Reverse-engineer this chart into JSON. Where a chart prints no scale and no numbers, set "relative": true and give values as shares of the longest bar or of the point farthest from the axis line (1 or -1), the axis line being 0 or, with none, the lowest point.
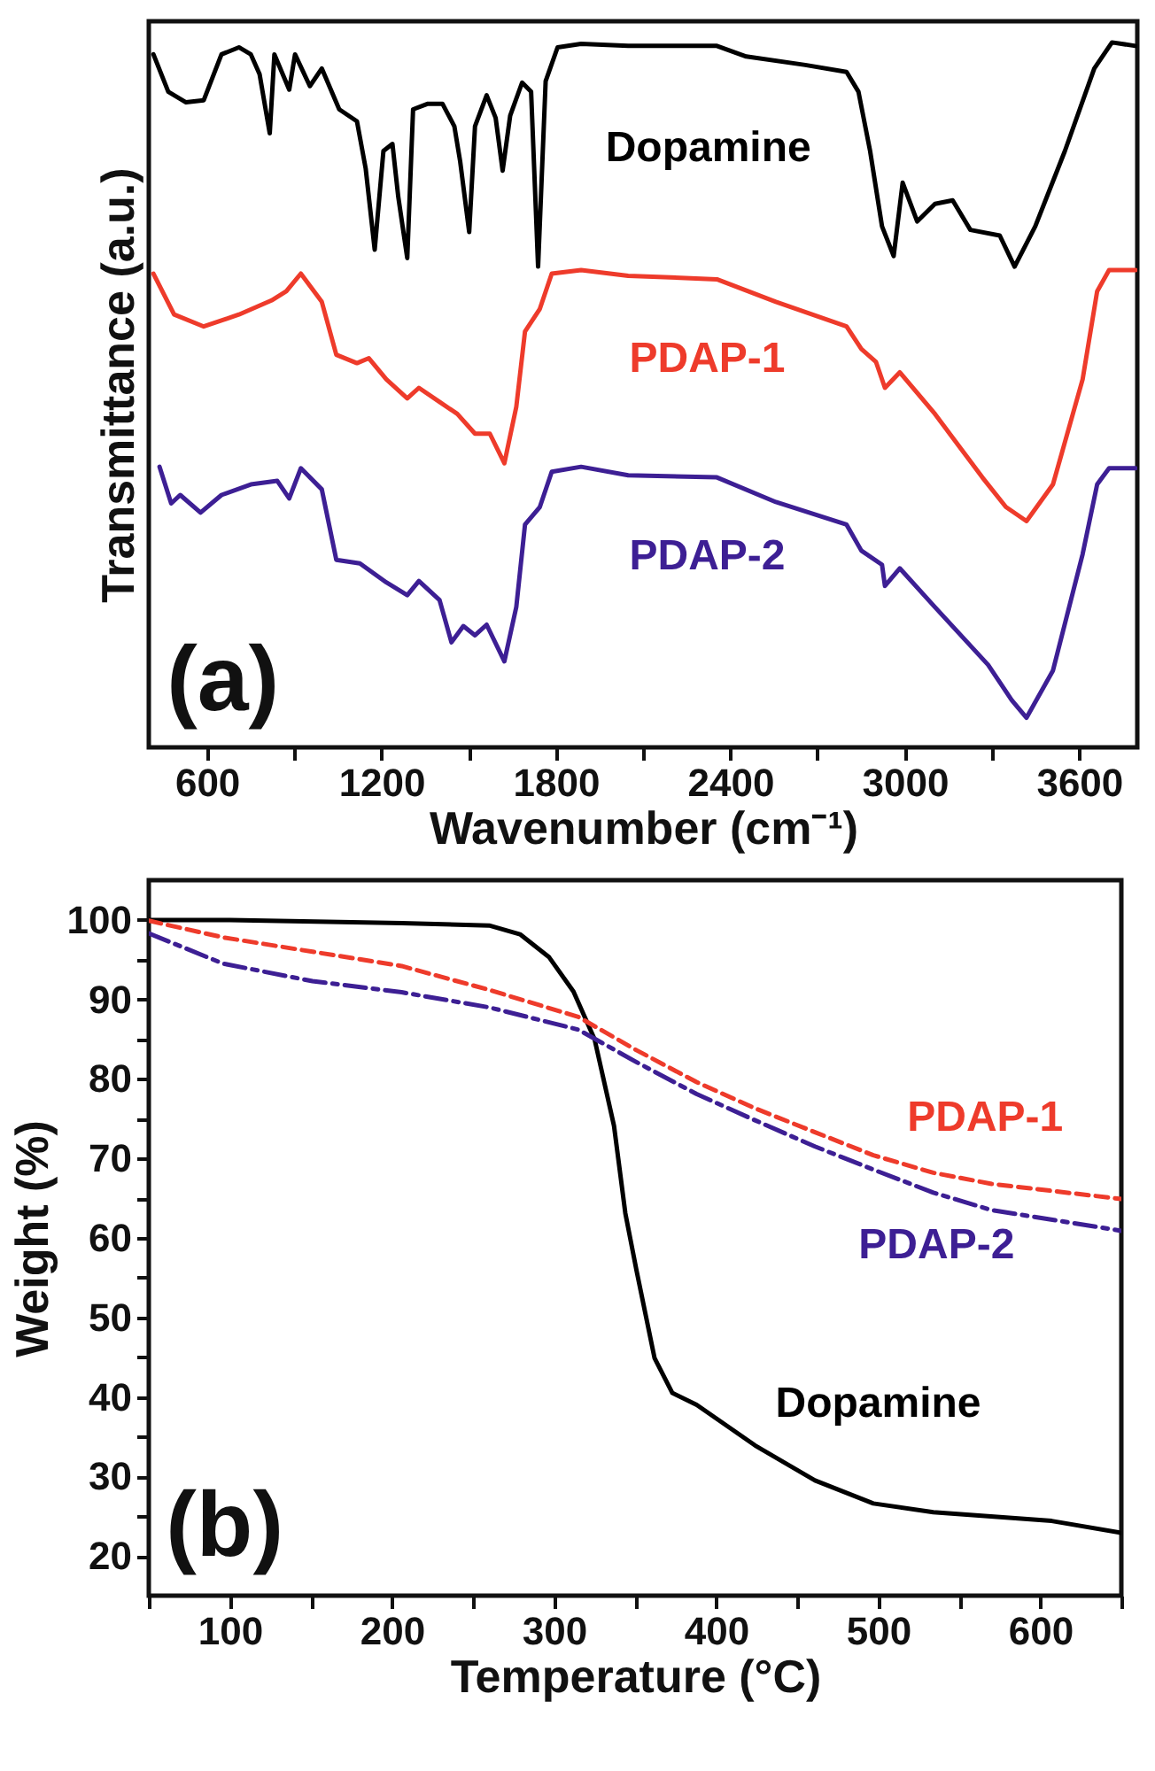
{
  "chart_data": [
    {
      "type": "line",
      "relative": true,
      "xlabel": "Wavenumber (cm⁻¹)",
      "ylabel": "Transmittance (a.u.)",
      "xlim": [
        400,
        3800
      ],
      "xticks": [
        600,
        {
          "value": 900,
          "label": null
        },
        1200,
        {
          "value": 1500,
          "label": null
        },
        1800,
        {
          "value": 2100,
          "label": null
        },
        2400,
        {
          "value": 2700,
          "label": null
        },
        3000,
        {
          "value": 3300,
          "label": null
        },
        3600
      ],
      "annotations": [
        "(a)"
      ],
      "series": [
        {
          "name": "Dopamine",
          "color": "#000000",
          "x": [
            416,
            467,
            528,
            589,
            650,
            710,
            751,
            781,
            816,
            832,
            883,
            903,
            954,
            995,
            1055,
            1116,
            1146,
            1177,
            1207,
            1238,
            1258,
            1289,
            1309,
            1360,
            1410,
            1451,
            1471,
            1502,
            1522,
            1562,
            1593,
            1617,
            1643,
            1684,
            1715,
            1739,
            1765,
            1806,
            1887,
            2049,
            2354,
            2455,
            2658,
            2800,
            2841,
            2881,
            2922,
            2962,
            2993,
            3043,
            3104,
            3165,
            3226,
            3327,
            3378,
            3449,
            3551,
            3652,
            3713,
            3794
          ],
          "values": [
            0.983,
            0.93,
            0.915,
            0.918,
            0.983,
            0.993,
            0.983,
            0.955,
            0.871,
            0.983,
            0.933,
            0.983,
            0.938,
            0.963,
            0.905,
            0.888,
            0.821,
            0.706,
            0.846,
            0.856,
            0.781,
            0.694,
            0.905,
            0.913,
            0.913,
            0.881,
            0.831,
            0.731,
            0.881,
            0.925,
            0.893,
            0.818,
            0.896,
            0.943,
            0.93,
            0.682,
            0.945,
            0.993,
            0.998,
            0.995,
            0.995,
            0.98,
            0.968,
            0.958,
            0.93,
            0.846,
            0.739,
            0.697,
            0.801,
            0.746,
            0.771,
            0.776,
            0.734,
            0.726,
            0.682,
            0.739,
            0.846,
            0.963,
            1,
            0.995
          ]
        },
        {
          "name": "PDAP-1",
          "color": "#ee3b2b",
          "x": [
            416,
            487,
            589,
            710,
            822,
            873,
            923,
            995,
            1045,
            1116,
            1157,
            1217,
            1289,
            1329,
            1400,
            1461,
            1522,
            1573,
            1623,
            1664,
            1694,
            1745,
            1786,
            1887,
            2049,
            2354,
            2557,
            2800,
            2851,
            2901,
            2932,
            2983,
            3104,
            3267,
            3348,
            3419,
            3510,
            3612,
            3662,
            3703,
            3794
          ],
          "values": [
            0.672,
            0.614,
            0.597,
            0.614,
            0.634,
            0.647,
            0.672,
            0.632,
            0.557,
            0.545,
            0.552,
            0.522,
            0.495,
            0.51,
            0.49,
            0.473,
            0.445,
            0.445,
            0.403,
            0.483,
            0.59,
            0.622,
            0.672,
            0.677,
            0.669,
            0.664,
            0.632,
            0.597,
            0.565,
            0.547,
            0.51,
            0.532,
            0.473,
            0.383,
            0.341,
            0.321,
            0.373,
            0.522,
            0.647,
            0.677,
            0.677
          ]
        },
        {
          "name": "PDAP-2",
          "color": "#3d1f94",
          "x": [
            437,
            477,
            508,
            578,
            650,
            751,
            842,
            883,
            923,
            995,
            1045,
            1126,
            1217,
            1289,
            1329,
            1400,
            1441,
            1482,
            1522,
            1562,
            1623,
            1664,
            1694,
            1745,
            1786,
            1887,
            2049,
            2354,
            2557,
            2800,
            2851,
            2922,
            2932,
            2983,
            3104,
            3287,
            3368,
            3419,
            3510,
            3612,
            3662,
            3703,
            3794
          ],
          "values": [
            0.398,
            0.346,
            0.358,
            0.333,
            0.358,
            0.373,
            0.378,
            0.353,
            0.396,
            0.366,
            0.266,
            0.261,
            0.234,
            0.216,
            0.236,
            0.209,
            0.149,
            0.172,
            0.159,
            0.174,
            0.122,
            0.199,
            0.316,
            0.341,
            0.391,
            0.398,
            0.386,
            0.383,
            0.348,
            0.316,
            0.279,
            0.259,
            0.229,
            0.254,
            0.199,
            0.117,
            0.067,
            0.042,
            0.109,
            0.274,
            0.373,
            0.396,
            0.396
          ]
        }
      ]
    },
    {
      "type": "line",
      "xlabel": "Temperature (°C)",
      "ylabel": "Weight (%)",
      "xlim": [
        50,
        650
      ],
      "ylim": [
        15,
        105
      ],
      "xticks": [
        {
          "value": 50,
          "label": null
        },
        100,
        {
          "value": 150,
          "label": null
        },
        200,
        {
          "value": 250,
          "label": null
        },
        300,
        {
          "value": 350,
          "label": null
        },
        400,
        {
          "value": 450,
          "label": null
        },
        500,
        {
          "value": 550,
          "label": null
        },
        600,
        {
          "value": 650,
          "label": null
        }
      ],
      "yticks": [
        20,
        {
          "value": 25,
          "label": null
        },
        30,
        {
          "value": 35,
          "label": null
        },
        40,
        {
          "value": 45,
          "label": null
        },
        50,
        {
          "value": 55,
          "label": null
        },
        60,
        {
          "value": 65,
          "label": null
        },
        70,
        {
          "value": 75,
          "label": null
        },
        80,
        {
          "value": 85,
          "label": null
        },
        90,
        {
          "value": 95,
          "label": null
        },
        100
      ],
      "annotations": [
        "(b)"
      ],
      "series": [
        {
          "name": "Dopamine",
          "color": "#000000",
          "line_style": "solid",
          "x": [
            50,
            100,
            206,
            260,
            279,
            297,
            312,
            325,
            337,
            344,
            351,
            362,
            373,
            388,
            424,
            461,
            497,
            534,
            607,
            650
          ],
          "values": [
            100,
            100,
            99.6,
            99.3,
            98.2,
            95.3,
            91,
            85,
            74.1,
            63.1,
            55.8,
            44.9,
            40.5,
            39,
            33.9,
            29.5,
            26.6,
            25.5,
            24.4,
            22.9
          ]
        },
        {
          "name": "PDAP-1",
          "color": "#ee3b2b",
          "line_style": "dashed",
          "x": [
            50,
            96,
            151,
            206,
            260,
            315,
            351,
            388,
            424,
            461,
            497,
            534,
            570,
            650
          ],
          "values": [
            99.9,
            97.8,
            96,
            94.2,
            91.2,
            87.8,
            83.6,
            79.6,
            76.3,
            73.3,
            70.4,
            68.2,
            66.8,
            64.9
          ]
        },
        {
          "name": "PDAP-2",
          "color": "#3d1f94",
          "line_style": "dashdot",
          "x": [
            50,
            96,
            151,
            206,
            260,
            315,
            351,
            388,
            424,
            461,
            497,
            534,
            570,
            650
          ],
          "values": [
            98.3,
            94.5,
            92.3,
            90.9,
            89,
            86.2,
            82.1,
            78.1,
            74.8,
            71.5,
            68.6,
            65.7,
            63.5,
            60.9
          ]
        }
      ]
    }
  ]
}
